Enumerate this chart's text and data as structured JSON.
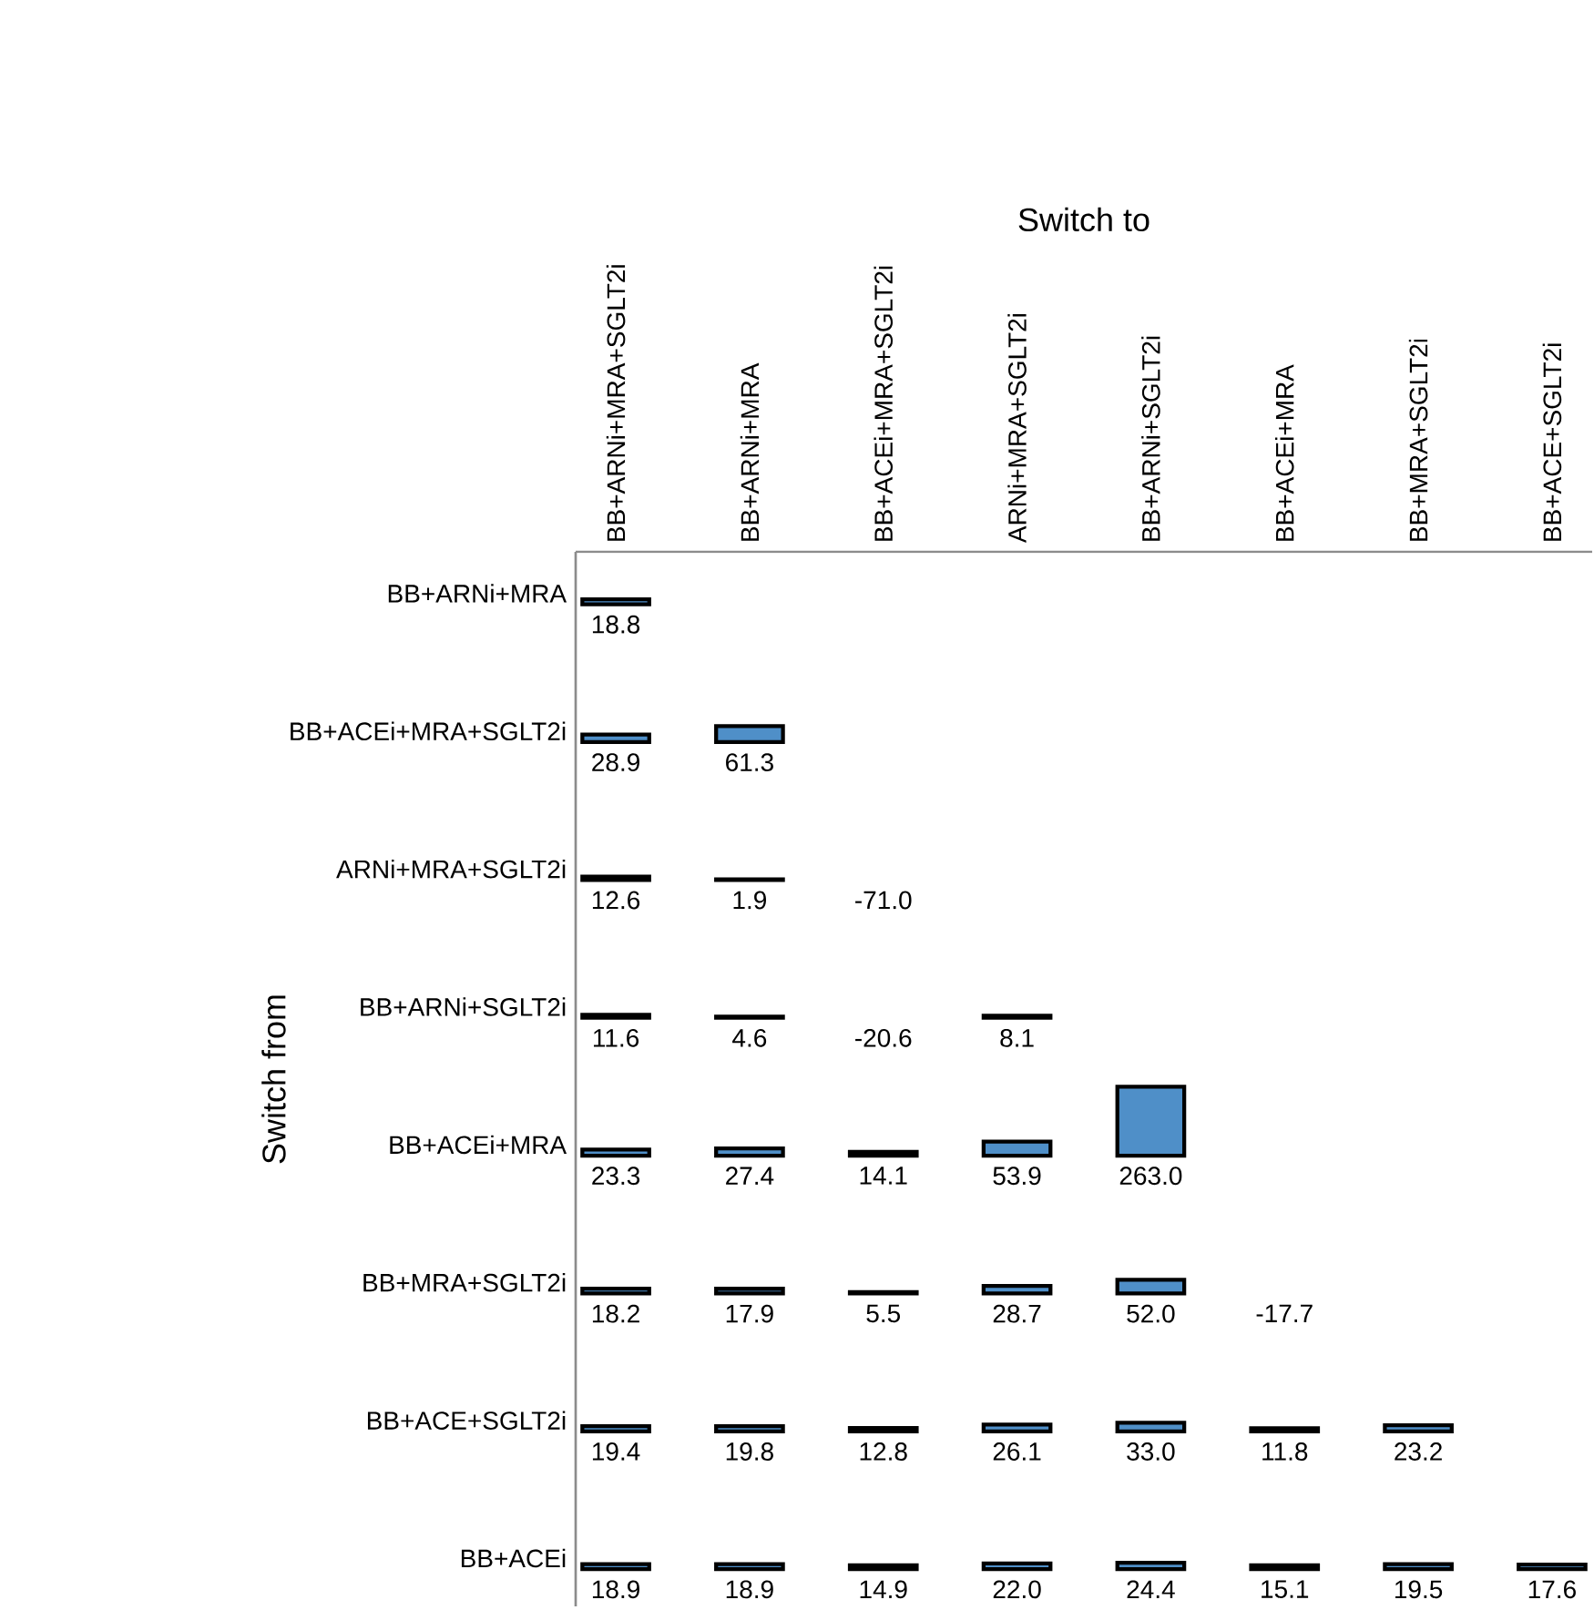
{
  "chart_data": {
    "type": "heatmap",
    "xlabel": "Switch to",
    "ylabel": "Switch from",
    "color": "#4f8fc8",
    "cell_labels": [
      [
        "18.8",
        null,
        null,
        null,
        null,
        null,
        null,
        null
      ],
      [
        "28.9",
        "61.3",
        null,
        null,
        null,
        null,
        null,
        null
      ],
      [
        "12.6",
        "1.9",
        "-71.0",
        null,
        null,
        null,
        null,
        null
      ],
      [
        "11.6",
        "4.6",
        "-20.6",
        "8.1",
        null,
        null,
        null,
        null
      ],
      [
        "23.3",
        "27.4",
        "14.1",
        "53.9",
        "263.0",
        null,
        null,
        null
      ],
      [
        "18.2",
        "17.9",
        "5.5",
        "28.7",
        "52.0",
        "-17.7",
        null,
        null
      ],
      [
        "19.4",
        "19.8",
        "12.8",
        "26.1",
        "33.0",
        "11.8",
        "23.2",
        null
      ],
      [
        "18.9",
        "18.9",
        "14.9",
        "22.0",
        "24.4",
        "15.1",
        "19.5",
        "17.6"
      ]
    ],
    "categories": [
      "BB+ARNi+MRA+SGLT2i",
      "BB+ARNi+MRA",
      "BB+ACEi+MRA+SGLT2i",
      "ARNi+MRA+SGLT2i",
      "BB+ARNi+SGLT2i",
      "BB+ACEi+MRA",
      "BB+MRA+SGLT2i",
      "BB+ACE+SGLT2i"
    ],
    "y_categories": [
      "BB+ARNi+MRA",
      "BB+ACEi+MRA+SGLT2i",
      "ARNi+MRA+SGLT2i",
      "BB+ARNi+SGLT2i",
      "BB+ACEi+MRA",
      "BB+MRA+SGLT2i",
      "BB+ACE+SGLT2i",
      "BB+ACEi"
    ],
    "cells": [
      [
        18.8,
        null,
        null,
        null,
        null,
        null,
        null,
        null
      ],
      [
        28.9,
        61.3,
        null,
        null,
        null,
        null,
        null,
        null
      ],
      [
        12.6,
        1.9,
        -71.0,
        null,
        null,
        null,
        null,
        null
      ],
      [
        11.6,
        4.6,
        -20.6,
        8.1,
        null,
        null,
        null,
        null
      ],
      [
        23.3,
        27.4,
        14.1,
        53.9,
        263.0,
        null,
        null,
        null
      ],
      [
        18.2,
        17.9,
        5.5,
        28.7,
        52.0,
        -17.7,
        null,
        null
      ],
      [
        19.4,
        19.8,
        12.8,
        26.1,
        33.0,
        11.8,
        23.2,
        null
      ],
      [
        18.9,
        18.9,
        14.9,
        22.0,
        24.4,
        15.1,
        19.5,
        17.6
      ]
    ]
  }
}
